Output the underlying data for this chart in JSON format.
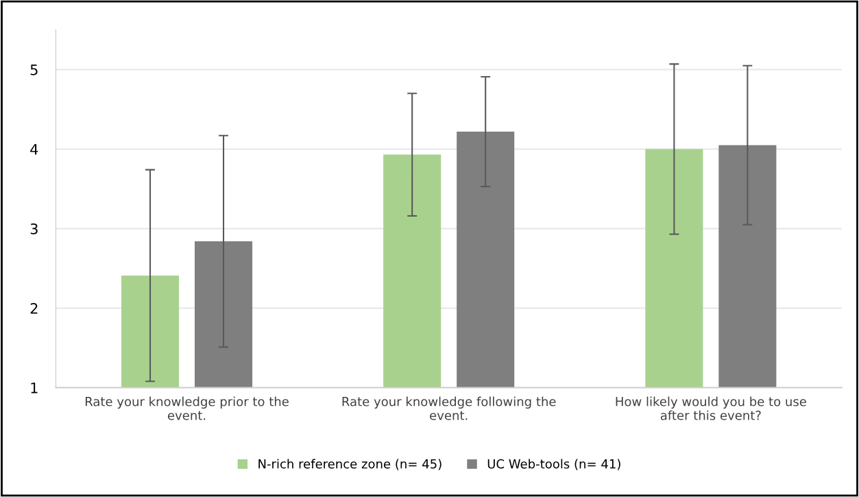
{
  "chart_data": {
    "type": "bar",
    "categories": [
      "Rate your knowledge prior to the event.",
      "Rate your knowledge following the event.",
      "How likely would you be to use after this event?"
    ],
    "series": [
      {
        "name": "N-rich reference zone (n= 45)",
        "color": "#a9d18e",
        "values": [
          2.41,
          3.93,
          4.0
        ],
        "errors": [
          1.33,
          0.77,
          1.07
        ]
      },
      {
        "name": "UC Web-tools (n= 41)",
        "color": "#7f7f7f",
        "values": [
          2.84,
          4.22,
          4.05
        ],
        "errors": [
          1.33,
          0.69,
          1.0
        ]
      }
    ],
    "ylim": [
      1,
      5.5
    ],
    "yticks": [
      1,
      2,
      3,
      4,
      5
    ],
    "grid": "y",
    "legend": "bottom"
  }
}
